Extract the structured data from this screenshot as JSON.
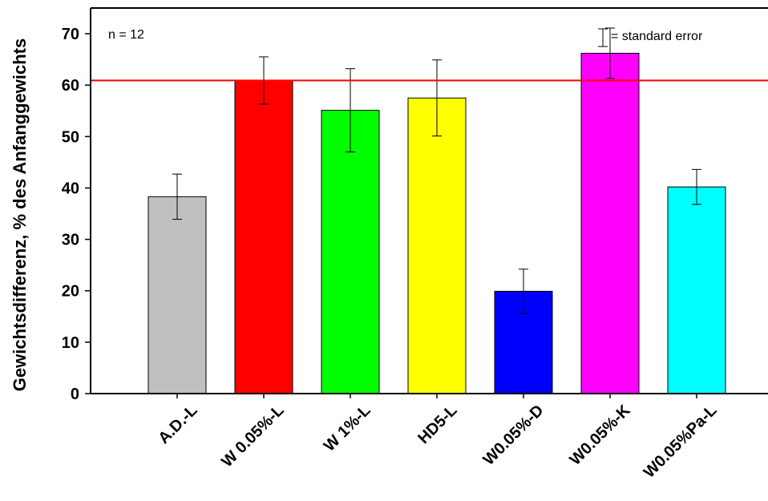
{
  "chart_data": {
    "type": "bar",
    "title": "",
    "xlabel": "",
    "ylabel": "Gewichtsdifferenz, % des Anfanggewichts",
    "ylim": [
      0,
      75
    ],
    "yticks": [
      0,
      10,
      20,
      30,
      40,
      50,
      60,
      70
    ],
    "grid": false,
    "categories": [
      "A.D.-L",
      "W  0.05%-L",
      "W 1%-L",
      "HD5-L",
      "W0.05%-D",
      "W0.05%-K",
      "W0.05%Pa-L"
    ],
    "values": [
      38.3,
      60.9,
      55.1,
      57.5,
      19.9,
      66.2,
      40.2
    ],
    "errors": [
      4.4,
      4.6,
      8.1,
      7.4,
      4.3,
      4.9,
      3.4
    ],
    "colors": [
      "#c0c0c0",
      "#ff0000",
      "#00ff00",
      "#ffff00",
      "#0000ff",
      "#ff00ff",
      "#00ffff"
    ],
    "reference_line": {
      "value": 60.9,
      "color": "#ff0000"
    },
    "annotations": {
      "n_label": "n = 12",
      "error_legend": "= standard error"
    }
  }
}
